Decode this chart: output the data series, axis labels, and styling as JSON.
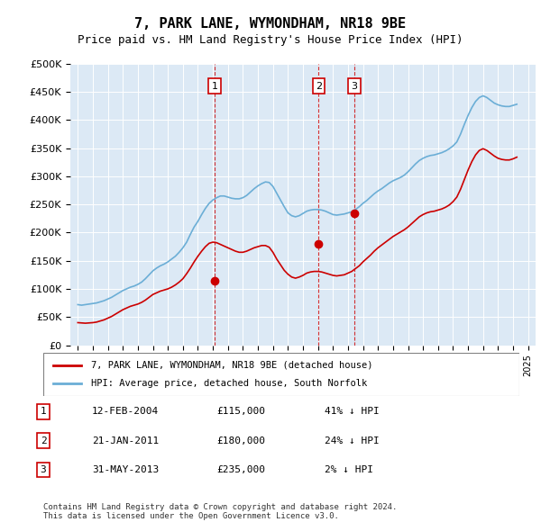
{
  "title": "7, PARK LANE, WYMONDHAM, NR18 9BE",
  "subtitle": "Price paid vs. HM Land Registry's House Price Index (HPI)",
  "ylabel": "",
  "background_color": "#dce9f5",
  "plot_bg_color": "#dce9f5",
  "ylim": [
    0,
    500000
  ],
  "yticks": [
    0,
    50000,
    100000,
    150000,
    200000,
    250000,
    300000,
    350000,
    400000,
    450000,
    500000
  ],
  "ytick_labels": [
    "£0",
    "£50K",
    "£100K",
    "£150K",
    "£200K",
    "£250K",
    "£300K",
    "£350K",
    "£400K",
    "£450K",
    "£500K"
  ],
  "xlim_start": 1994.5,
  "xlim_end": 2025.5,
  "hpi_color": "#6baed6",
  "property_color": "#cc0000",
  "sale_dates": [
    2004.12,
    2011.05,
    2013.42
  ],
  "sale_prices": [
    115000,
    180000,
    235000
  ],
  "sale_labels": [
    "1",
    "2",
    "3"
  ],
  "sale_info": [
    {
      "num": "1",
      "date": "12-FEB-2004",
      "price": "£115,000",
      "pct": "41% ↓ HPI"
    },
    {
      "num": "2",
      "date": "21-JAN-2011",
      "price": "£180,000",
      "pct": "24% ↓ HPI"
    },
    {
      "num": "3",
      "date": "31-MAY-2013",
      "price": "£235,000",
      "pct": "2% ↓ HPI"
    }
  ],
  "legend_property": "7, PARK LANE, WYMONDHAM, NR18 9BE (detached house)",
  "legend_hpi": "HPI: Average price, detached house, South Norfolk",
  "footer": "Contains HM Land Registry data © Crown copyright and database right 2024.\nThis data is licensed under the Open Government Licence v3.0.",
  "hpi_data_x": [
    1995,
    1995.25,
    1995.5,
    1995.75,
    1996,
    1996.25,
    1996.5,
    1996.75,
    1997,
    1997.25,
    1997.5,
    1997.75,
    1998,
    1998.25,
    1998.5,
    1998.75,
    1999,
    1999.25,
    1999.5,
    1999.75,
    2000,
    2000.25,
    2000.5,
    2000.75,
    2001,
    2001.25,
    2001.5,
    2001.75,
    2002,
    2002.25,
    2002.5,
    2002.75,
    2003,
    2003.25,
    2003.5,
    2003.75,
    2004,
    2004.25,
    2004.5,
    2004.75,
    2005,
    2005.25,
    2005.5,
    2005.75,
    2006,
    2006.25,
    2006.5,
    2006.75,
    2007,
    2007.25,
    2007.5,
    2007.75,
    2008,
    2008.25,
    2008.5,
    2008.75,
    2009,
    2009.25,
    2009.5,
    2009.75,
    2010,
    2010.25,
    2010.5,
    2010.75,
    2011,
    2011.25,
    2011.5,
    2011.75,
    2012,
    2012.25,
    2012.5,
    2012.75,
    2013,
    2013.25,
    2013.5,
    2013.75,
    2014,
    2014.25,
    2014.5,
    2014.75,
    2015,
    2015.25,
    2015.5,
    2015.75,
    2016,
    2016.25,
    2016.5,
    2016.75,
    2017,
    2017.25,
    2017.5,
    2017.75,
    2018,
    2018.25,
    2018.5,
    2018.75,
    2019,
    2019.25,
    2019.5,
    2019.75,
    2020,
    2020.25,
    2020.5,
    2020.75,
    2021,
    2021.25,
    2021.5,
    2021.75,
    2022,
    2022.25,
    2022.5,
    2022.75,
    2023,
    2023.25,
    2023.5,
    2023.75,
    2024,
    2024.25
  ],
  "hpi_data_y": [
    72000,
    71000,
    72000,
    73000,
    74000,
    75000,
    77000,
    79000,
    82000,
    85000,
    89000,
    93000,
    97000,
    100000,
    103000,
    105000,
    108000,
    112000,
    118000,
    125000,
    132000,
    137000,
    141000,
    144000,
    148000,
    153000,
    158000,
    165000,
    173000,
    183000,
    197000,
    210000,
    220000,
    232000,
    243000,
    252000,
    258000,
    262000,
    265000,
    265000,
    263000,
    261000,
    260000,
    260000,
    262000,
    266000,
    272000,
    278000,
    283000,
    287000,
    290000,
    289000,
    282000,
    270000,
    258000,
    246000,
    235000,
    230000,
    228000,
    230000,
    234000,
    238000,
    240000,
    241000,
    241000,
    240000,
    238000,
    235000,
    232000,
    231000,
    232000,
    233000,
    235000,
    237000,
    241000,
    246000,
    252000,
    257000,
    263000,
    269000,
    274000,
    278000,
    283000,
    288000,
    292000,
    295000,
    298000,
    302000,
    308000,
    315000,
    322000,
    328000,
    332000,
    335000,
    337000,
    338000,
    340000,
    342000,
    345000,
    349000,
    354000,
    361000,
    375000,
    392000,
    408000,
    422000,
    433000,
    440000,
    443000,
    440000,
    435000,
    430000,
    427000,
    425000,
    424000,
    424000,
    426000,
    428000
  ],
  "prop_data_x": [
    1995,
    1995.25,
    1995.5,
    1995.75,
    1996,
    1996.25,
    1996.5,
    1996.75,
    1997,
    1997.25,
    1997.5,
    1997.75,
    1998,
    1998.25,
    1998.5,
    1998.75,
    1999,
    1999.25,
    1999.5,
    1999.75,
    2000,
    2000.25,
    2000.5,
    2000.75,
    2001,
    2001.25,
    2001.5,
    2001.75,
    2002,
    2002.25,
    2002.5,
    2002.75,
    2003,
    2003.25,
    2003.5,
    2003.75,
    2004,
    2004.25,
    2004.5,
    2004.75,
    2005,
    2005.25,
    2005.5,
    2005.75,
    2006,
    2006.25,
    2006.5,
    2006.75,
    2007,
    2007.25,
    2007.5,
    2007.75,
    2008,
    2008.25,
    2008.5,
    2008.75,
    2009,
    2009.25,
    2009.5,
    2009.75,
    2010,
    2010.25,
    2010.5,
    2010.75,
    2011,
    2011.25,
    2011.5,
    2011.75,
    2012,
    2012.25,
    2012.5,
    2012.75,
    2013,
    2013.25,
    2013.5,
    2013.75,
    2014,
    2014.25,
    2014.5,
    2014.75,
    2015,
    2015.25,
    2015.5,
    2015.75,
    2016,
    2016.25,
    2016.5,
    2016.75,
    2017,
    2017.25,
    2017.5,
    2017.75,
    2018,
    2018.25,
    2018.5,
    2018.75,
    2019,
    2019.25,
    2019.5,
    2019.75,
    2020,
    2020.25,
    2020.5,
    2020.75,
    2021,
    2021.25,
    2021.5,
    2021.75,
    2022,
    2022.25,
    2022.5,
    2022.75,
    2023,
    2023.25,
    2023.5,
    2023.75,
    2024,
    2024.25
  ],
  "prop_data_y": [
    40000,
    39500,
    39000,
    39500,
    40000,
    41000,
    43000,
    45000,
    48000,
    51000,
    55000,
    59000,
    63000,
    66000,
    69000,
    71000,
    73000,
    76000,
    80000,
    85000,
    90000,
    93000,
    96000,
    98000,
    100000,
    103000,
    107000,
    112000,
    118000,
    127000,
    137000,
    148000,
    158000,
    167000,
    175000,
    181000,
    183000,
    182000,
    179000,
    176000,
    173000,
    170000,
    167000,
    165000,
    165000,
    167000,
    170000,
    173000,
    175000,
    177000,
    177000,
    174000,
    165000,
    153000,
    143000,
    133000,
    126000,
    121000,
    119000,
    121000,
    124000,
    128000,
    130000,
    131000,
    131000,
    130000,
    128000,
    126000,
    124000,
    123000,
    124000,
    125000,
    128000,
    131000,
    136000,
    141000,
    148000,
    154000,
    160000,
    167000,
    173000,
    178000,
    183000,
    188000,
    193000,
    197000,
    201000,
    205000,
    210000,
    216000,
    222000,
    228000,
    232000,
    235000,
    237000,
    238000,
    240000,
    242000,
    245000,
    249000,
    255000,
    263000,
    277000,
    294000,
    311000,
    326000,
    338000,
    346000,
    349000,
    346000,
    341000,
    336000,
    332000,
    330000,
    329000,
    329000,
    331000,
    334000
  ]
}
